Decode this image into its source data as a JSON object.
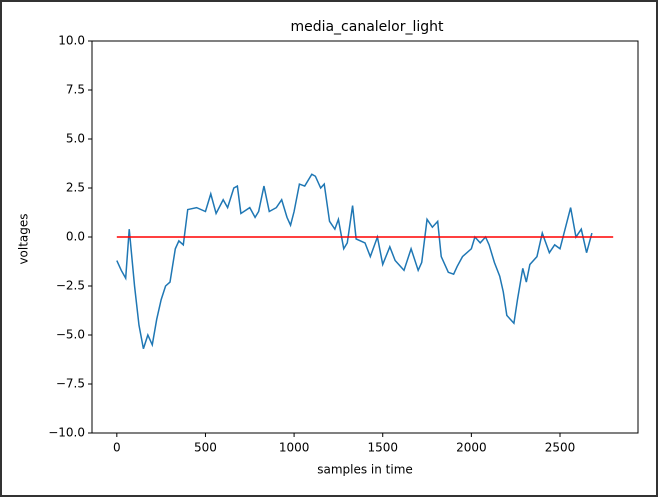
{
  "chart_data": {
    "type": "line",
    "title": "media_canalelor_light",
    "xlabel": "samples in time",
    "ylabel": "voltages",
    "xlim": [
      -140,
      2940
    ],
    "ylim": [
      -10,
      10
    ],
    "xticks": [
      0,
      500,
      1000,
      1500,
      2000,
      2500
    ],
    "yticks": [
      {
        "value": -10,
        "label": "−10.0"
      },
      {
        "value": -7.5,
        "label": "−7.5"
      },
      {
        "value": -5,
        "label": "−5.0"
      },
      {
        "value": -2.5,
        "label": "−2.5"
      },
      {
        "value": 0,
        "label": "0.0"
      },
      {
        "value": 2.5,
        "label": "2.5"
      },
      {
        "value": 5,
        "label": "5.0"
      },
      {
        "value": 7.5,
        "label": "7.5"
      },
      {
        "value": 10,
        "label": "10.0"
      }
    ],
    "series": [
      {
        "color": "#1f77b4",
        "x": [
          0,
          25,
          50,
          70,
          100,
          125,
          150,
          175,
          200,
          225,
          250,
          275,
          300,
          330,
          350,
          375,
          400,
          450,
          500,
          530,
          560,
          600,
          625,
          660,
          680,
          700,
          750,
          780,
          800,
          830,
          860,
          900,
          930,
          960,
          980,
          1000,
          1030,
          1060,
          1100,
          1120,
          1150,
          1170,
          1200,
          1230,
          1250,
          1280,
          1300,
          1330,
          1350,
          1400,
          1430,
          1470,
          1500,
          1540,
          1570,
          1600,
          1620,
          1660,
          1700,
          1720,
          1750,
          1780,
          1810,
          1830,
          1870,
          1900,
          1920,
          1950,
          2000,
          2020,
          2050,
          2080,
          2100,
          2130,
          2160,
          2180,
          2200,
          2240,
          2260,
          2290,
          2310,
          2330,
          2370,
          2400,
          2420,
          2440,
          2470,
          2500,
          2540,
          2560,
          2590,
          2620,
          2650,
          2680
        ],
        "values": [
          -1.2,
          -1.7,
          -2.1,
          0.4,
          -2.5,
          -4.5,
          -5.7,
          -5.0,
          -5.5,
          -4.2,
          -3.2,
          -2.5,
          -2.3,
          -0.6,
          -0.2,
          -0.4,
          1.4,
          1.5,
          1.3,
          2.2,
          1.2,
          1.9,
          1.5,
          2.5,
          2.6,
          1.2,
          1.5,
          1.0,
          1.3,
          2.6,
          1.3,
          1.5,
          1.9,
          1.0,
          0.6,
          1.3,
          2.7,
          2.6,
          3.2,
          3.1,
          2.5,
          2.7,
          0.8,
          0.4,
          0.9,
          -0.6,
          -0.3,
          1.6,
          -0.1,
          -0.3,
          -1.0,
          0.0,
          -1.4,
          -0.5,
          -1.2,
          -1.5,
          -1.7,
          -0.6,
          -1.7,
          -1.3,
          0.9,
          0.5,
          0.8,
          -1.0,
          -1.8,
          -1.9,
          -1.5,
          -1.0,
          -0.6,
          0.0,
          -0.3,
          0.0,
          -0.4,
          -1.3,
          -2.0,
          -2.8,
          -4.0,
          -4.4,
          -3.2,
          -1.6,
          -2.3,
          -1.4,
          -1.0,
          0.2,
          -0.3,
          -0.8,
          -0.4,
          -0.6,
          0.8,
          1.5,
          0.0,
          0.4,
          -0.8,
          0.2
        ]
      },
      {
        "color": "#ff0000",
        "x": [
          0,
          2800
        ],
        "values": [
          0,
          0
        ]
      }
    ]
  }
}
